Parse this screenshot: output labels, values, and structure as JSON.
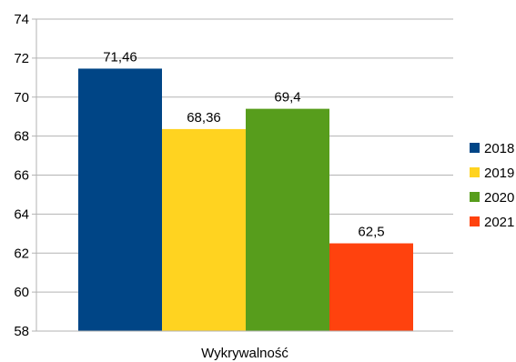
{
  "chart_data": {
    "type": "bar",
    "categories": [
      "Wykrywalność"
    ],
    "series": [
      {
        "name": "2018",
        "values": [
          71.46
        ],
        "label": "71,46",
        "color": "#004586"
      },
      {
        "name": "2019",
        "values": [
          68.36
        ],
        "label": "68,36",
        "color": "#ffd320"
      },
      {
        "name": "2020",
        "values": [
          69.4
        ],
        "label": "69,4",
        "color": "#579d1c"
      },
      {
        "name": "2021",
        "values": [
          62.5
        ],
        "label": "62,5",
        "color": "#ff420e"
      }
    ],
    "ylim": [
      58,
      74
    ],
    "yticks": [
      58,
      60,
      62,
      64,
      66,
      68,
      70,
      72,
      74
    ],
    "grid": true,
    "legend": "right"
  }
}
